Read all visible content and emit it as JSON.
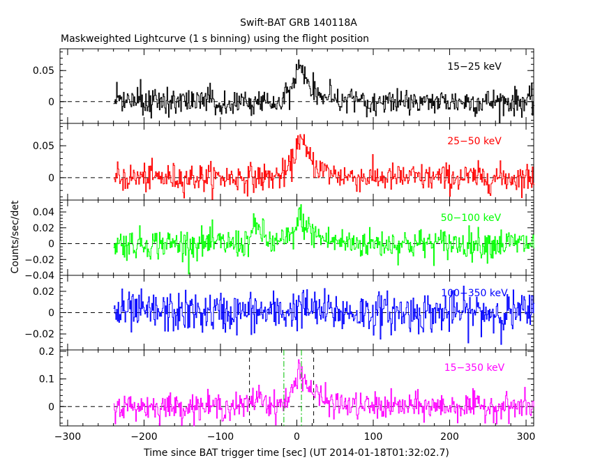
{
  "chart_data": {
    "type": "line",
    "title": "Swift-BAT GRB 140118A",
    "subtitle": "Maskweighted Lightcurve (1 s binning) using the flight position",
    "xlabel": "Time since BAT trigger time [sec] (UT 2014-01-18T01:32:02.7)",
    "ylabel": "Counts/sec/det",
    "xlim": [
      -310,
      310
    ],
    "x_ticks": [
      -300,
      -200,
      -100,
      0,
      100,
      200,
      300
    ],
    "x_tick_labels": [
      "−300",
      "−200",
      "−100",
      "0",
      "100",
      "200",
      "300"
    ],
    "data_range": [
      -240,
      310
    ],
    "panels": [
      {
        "name": "15-25 keV",
        "label": "15−25 keV",
        "color": "#000000",
        "ylim": [
          -0.035,
          0.085
        ],
        "y_ticks": [
          0,
          0.05
        ],
        "y_tick_labels": [
          "0",
          "0.05"
        ],
        "noise_sigma": 0.011,
        "peak": 0.065,
        "peak_time": 2,
        "secondary_peak": 0.0,
        "secondary_time": -50
      },
      {
        "name": "25-50 keV",
        "label": "25−50 keV",
        "color": "#ff0000",
        "ylim": [
          -0.035,
          0.085
        ],
        "y_ticks": [
          0,
          0.05
        ],
        "y_tick_labels": [
          "0",
          "0.05"
        ],
        "noise_sigma": 0.011,
        "peak": 0.068,
        "peak_time": 2,
        "secondary_peak": 0.0,
        "secondary_time": -50
      },
      {
        "name": "50-100 keV",
        "label": "50−100 keV",
        "color": "#00ff00",
        "ylim": [
          -0.04,
          0.055
        ],
        "y_ticks": [
          -0.04,
          -0.02,
          0,
          0.02,
          0.04
        ],
        "y_tick_labels": [
          "−0.04",
          "−0.02",
          "0",
          "0.02",
          "0.04"
        ],
        "noise_sigma": 0.0095,
        "peak": 0.035,
        "peak_time": 3,
        "secondary_peak": 0.02,
        "secondary_time": -52
      },
      {
        "name": "100-350 keV",
        "label": "100−350 keV",
        "color": "#0000ff",
        "ylim": [
          -0.035,
          0.035
        ],
        "y_ticks": [
          -0.02,
          0,
          0.02
        ],
        "y_tick_labels": [
          "−0.02",
          "0",
          "0.02"
        ],
        "noise_sigma": 0.0095,
        "peak": 0.006,
        "peak_time": 3,
        "secondary_peak": 0.0,
        "secondary_time": -50
      },
      {
        "name": "15-350 keV",
        "label": "15−350 keV",
        "color": "#ff00ff",
        "ylim": [
          -0.07,
          0.205
        ],
        "y_ticks": [
          0,
          0.1,
          0.2
        ],
        "y_tick_labels": [
          "0",
          "0.1",
          "0.2"
        ],
        "noise_sigma": 0.024,
        "peak": 0.15,
        "peak_time": 2,
        "secondary_peak": 0.04,
        "secondary_time": -50
      }
    ],
    "markers": {
      "black_dashed": [
        -62,
        22
      ],
      "green_dashdot": [
        -17,
        6
      ]
    }
  }
}
